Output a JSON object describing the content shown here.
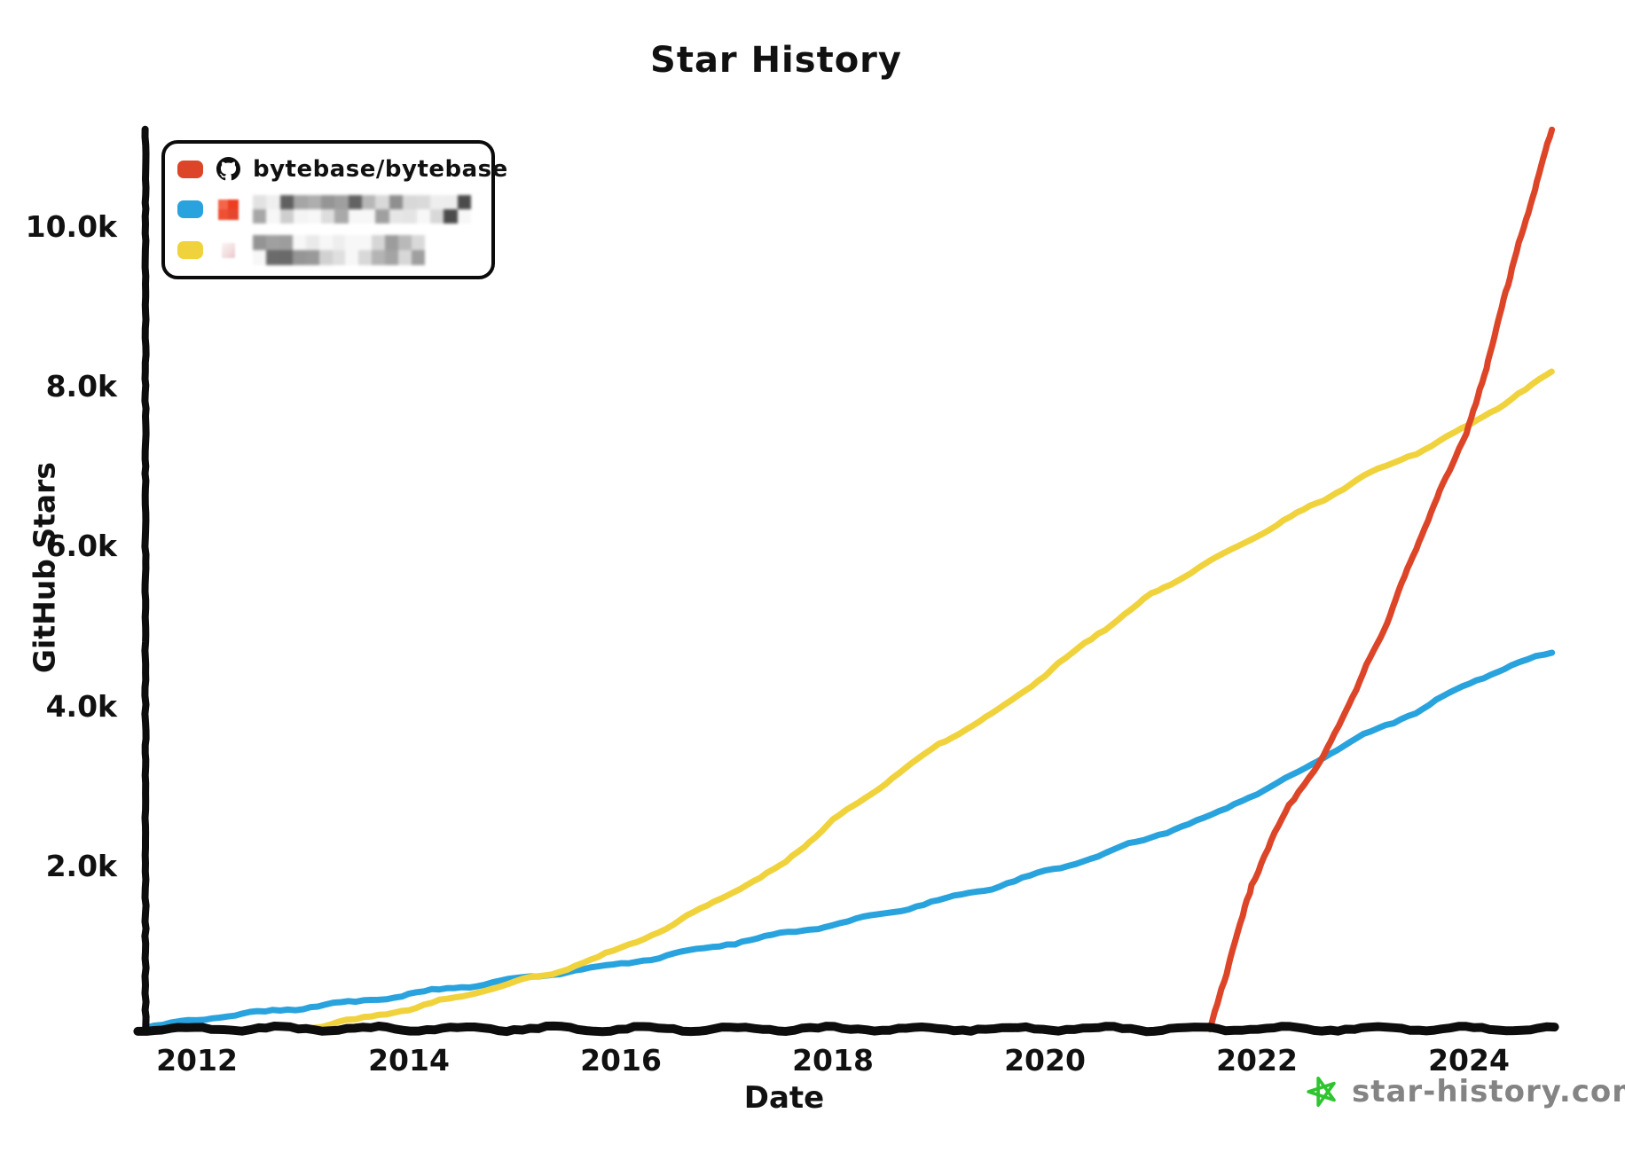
{
  "chart_data": {
    "type": "line",
    "title": "Star History",
    "xlabel": "Date",
    "ylabel": "GitHub Stars",
    "x_range": [
      2011.5,
      2024.8
    ],
    "y_range": [
      0,
      11500
    ],
    "grid": false,
    "legend_position": "top-left",
    "x_ticks": [
      {
        "value": 2012,
        "label": "2012"
      },
      {
        "value": 2014,
        "label": "2014"
      },
      {
        "value": 2016,
        "label": "2016"
      },
      {
        "value": 2018,
        "label": "2018"
      },
      {
        "value": 2020,
        "label": "2020"
      },
      {
        "value": 2022,
        "label": "2022"
      },
      {
        "value": 2024,
        "label": "2024"
      }
    ],
    "y_ticks": [
      {
        "value": 2000,
        "label": "2.0k"
      },
      {
        "value": 4000,
        "label": "4.0k"
      },
      {
        "value": 6000,
        "label": "6.0k"
      },
      {
        "value": 8000,
        "label": "8.0k"
      },
      {
        "value": 10000,
        "label": "10.0k"
      }
    ],
    "series": [
      {
        "name": "bytebase/bytebase",
        "redacted": false,
        "color": "#dd4528",
        "unit": "stars",
        "points": [
          [
            2021.56,
            0
          ],
          [
            2021.75,
            900
          ],
          [
            2021.95,
            1800
          ],
          [
            2022.1,
            2250
          ],
          [
            2022.3,
            2800
          ],
          [
            2022.63,
            3400
          ],
          [
            2022.9,
            4150
          ],
          [
            2023.2,
            5000
          ],
          [
            2023.5,
            6000
          ],
          [
            2023.75,
            6800
          ],
          [
            2024.0,
            7530
          ],
          [
            2024.2,
            8450
          ],
          [
            2024.4,
            9500
          ],
          [
            2024.6,
            10400
          ],
          [
            2024.78,
            11230
          ]
        ]
      },
      {
        "name": "",
        "redacted": true,
        "color": "#29a3dd",
        "unit": "stars",
        "points": [
          [
            2011.52,
            0
          ],
          [
            2012,
            120
          ],
          [
            2012.5,
            190
          ],
          [
            2013,
            265
          ],
          [
            2013.5,
            335
          ],
          [
            2014,
            430
          ],
          [
            2014.5,
            525
          ],
          [
            2015,
            615
          ],
          [
            2015.35,
            690
          ],
          [
            2016,
            810
          ],
          [
            2016.5,
            930
          ],
          [
            2017,
            1060
          ],
          [
            2017.5,
            1180
          ],
          [
            2018,
            1300
          ],
          [
            2018.5,
            1440
          ],
          [
            2019,
            1600
          ],
          [
            2019.5,
            1760
          ],
          [
            2020,
            1960
          ],
          [
            2020.5,
            2160
          ],
          [
            2021,
            2400
          ],
          [
            2021.5,
            2620
          ],
          [
            2022,
            2950
          ],
          [
            2022.33,
            3150
          ],
          [
            2022.63,
            3400
          ],
          [
            2023,
            3660
          ],
          [
            2023.5,
            3960
          ],
          [
            2024,
            4320
          ],
          [
            2024.4,
            4540
          ],
          [
            2024.78,
            4700
          ]
        ]
      },
      {
        "name": "",
        "redacted": true,
        "color": "#f0d33c",
        "unit": "stars",
        "points": [
          [
            2013.02,
            0
          ],
          [
            2013.5,
            110
          ],
          [
            2014,
            250
          ],
          [
            2014.5,
            410
          ],
          [
            2015,
            580
          ],
          [
            2015.35,
            690
          ],
          [
            2016,
            1000
          ],
          [
            2016.5,
            1310
          ],
          [
            2017,
            1670
          ],
          [
            2017.5,
            2020
          ],
          [
            2018,
            2600
          ],
          [
            2018.5,
            3070
          ],
          [
            2019,
            3560
          ],
          [
            2019.5,
            3920
          ],
          [
            2020,
            4420
          ],
          [
            2020.5,
            4940
          ],
          [
            2021,
            5420
          ],
          [
            2021.5,
            5800
          ],
          [
            2022,
            6160
          ],
          [
            2022.5,
            6520
          ],
          [
            2023,
            6900
          ],
          [
            2023.5,
            7200
          ],
          [
            2024,
            7530
          ],
          [
            2024.4,
            7880
          ],
          [
            2024.78,
            8200
          ]
        ]
      }
    ]
  },
  "legend": {
    "entries": [
      {
        "label": "bytebase/bytebase",
        "swatch_color": "#dd4528",
        "icon": "github-octocat",
        "redacted": false
      },
      {
        "label": "",
        "swatch_color": "#29a3dd",
        "icon": "blurred-repo-logo",
        "redacted": true
      },
      {
        "label": "",
        "swatch_color": "#f0d33c",
        "icon": "blurred-repo-logo",
        "redacted": true
      }
    ]
  },
  "watermark": {
    "text": "star-history.com",
    "star_color": "#2fc52f",
    "text_color": "#848484"
  },
  "axis_color": "#0d0d0d"
}
